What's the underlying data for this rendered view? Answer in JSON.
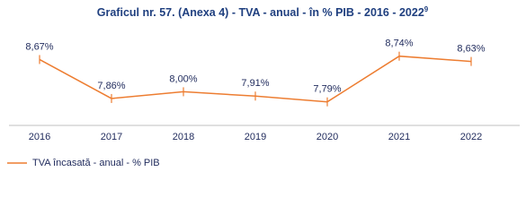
{
  "chart_data": {
    "type": "line",
    "title": "Graficul nr. 57. (Anexa 4) - TVA - anual - în % PIB - 2016 - 2022",
    "title_footnote": "9",
    "categories": [
      "2016",
      "2017",
      "2018",
      "2019",
      "2020",
      "2021",
      "2022"
    ],
    "series": [
      {
        "name": "TVA încasată - anual - % PIB",
        "color": "#ed7d31",
        "values": [
          8.67,
          7.86,
          8.0,
          7.91,
          7.79,
          8.74,
          8.63
        ],
        "value_labels": [
          "8,67%",
          "7,86%",
          "8,00%",
          "7,91%",
          "7,79%",
          "8,74%",
          "8,63%"
        ]
      }
    ],
    "ylim": [
      7.3,
      9.2
    ],
    "legend": "bottom-left"
  }
}
